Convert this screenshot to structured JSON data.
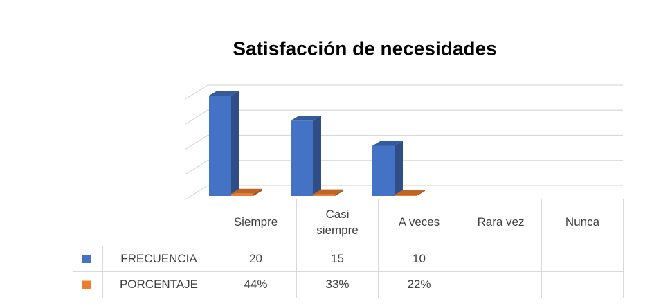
{
  "chart_data": {
    "type": "bar3d",
    "title": "Satisfacción de necesidades",
    "categories": [
      "Siempre",
      "Casi siempre",
      "A veces",
      "Rara vez",
      "Nunca"
    ],
    "series": [
      {
        "name": "FRECUENCIA",
        "color": "#4472c4",
        "values": [
          20,
          15,
          10,
          null,
          null
        ]
      },
      {
        "name": "PORCENTAJE",
        "color": "#ed7d31",
        "values": [
          0.44,
          0.33,
          0.22,
          null,
          null
        ],
        "value_labels": [
          "44%",
          "33%",
          "22%",
          null,
          null
        ]
      }
    ],
    "ylim": [
      0,
      20
    ],
    "yticks": [
      0,
      5,
      10,
      15,
      20
    ],
    "grid": true,
    "data_table": true
  }
}
